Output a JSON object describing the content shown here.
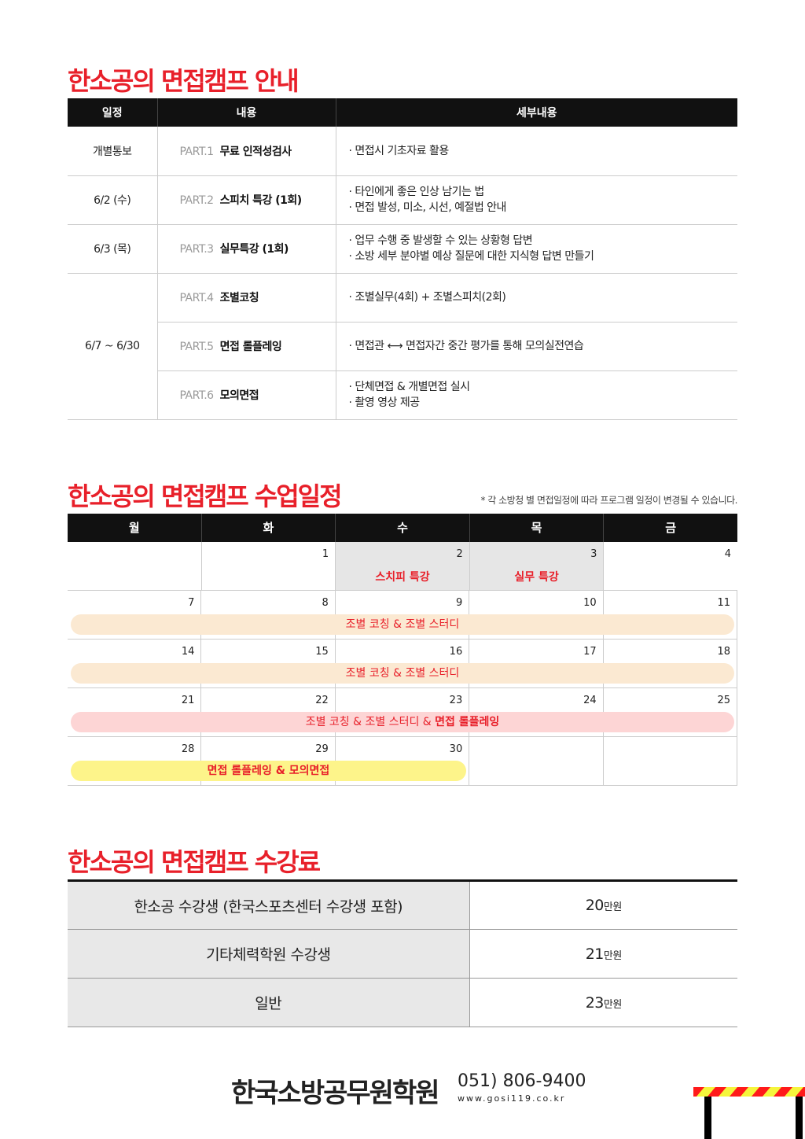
{
  "section1": {
    "title": "한소공의 면접캠프 안내",
    "headers": [
      "일정",
      "내용",
      "세부내용"
    ],
    "rows": [
      {
        "date": "개별통보",
        "part": "PART.1",
        "name": "무료 인적성검사",
        "details": [
          "· 면접시 기초자료 활용"
        ]
      },
      {
        "date": "6/2 (수)",
        "part": "PART.2",
        "name": "스피치 특강 (1회)",
        "details": [
          "· 타인에게 좋은 인상 남기는 법",
          "· 면접 발성, 미소, 시선, 예절법 안내"
        ]
      },
      {
        "date": "6/3 (목)",
        "part": "PART.3",
        "name": "실무특강 (1회)",
        "details": [
          "· 업무 수행 중 발생할 수 있는 상황형 답변",
          "· 소방 세부 분야별 예상 질문에 대한 지식형 답변 만들기"
        ]
      },
      {
        "date": "6/7 ~ 6/30",
        "part": "PART.4",
        "name": "조별코칭",
        "details": [
          "· 조별실무(4회) + 조별스피치(2회)"
        ]
      },
      {
        "date": "",
        "part": "PART.5",
        "name": "면접 롤플레잉",
        "details": [
          "· 면접관 ⟷ 면접자간 중간 평가를 통해 모의실전연습"
        ]
      },
      {
        "date": "",
        "part": "PART.6",
        "name": "모의면접",
        "details": [
          "· 단체면접 & 개별면접 실시",
          "· 촬영 영상 제공"
        ]
      }
    ]
  },
  "section2": {
    "title": "한소공의 면접캠프 수업일정",
    "note": "* 각 소방청 별 면접일정에 따라 프로그램 일정이 변경될 수 있습니다.",
    "weekdays": [
      "월",
      "화",
      "수",
      "목",
      "금"
    ],
    "weeks": [
      [
        "",
        "1",
        "2",
        "3",
        "4"
      ],
      [
        "7",
        "8",
        "9",
        "10",
        "11"
      ],
      [
        "14",
        "15",
        "16",
        "17",
        "18"
      ],
      [
        "21",
        "22",
        "23",
        "24",
        "25"
      ],
      [
        "28",
        "29",
        "30",
        "",
        ""
      ]
    ],
    "events": {
      "d2": "스치피 특강",
      "d3": "실무 특강",
      "w2": "조별 코칭 & 조별 스터디",
      "w3": "조별 코칭 & 조별 스터디",
      "w4a": "조별 코칭 & 조별 스터디 & ",
      "w4b": "면접 롤플레잉",
      "w5": "면접 롤플레잉 & 모의면접"
    },
    "colors": {
      "beige": "#fbe9d2",
      "pink": "#fdd5d5",
      "yellow": "#fdf48a",
      "red": "#e8202a"
    }
  },
  "section3": {
    "title": "한소공의 면접캠프 수강료",
    "rows": [
      {
        "label": "한소공 수강생 (한국스포츠센터 수강생 포함)",
        "amount": "20",
        "unit": "만원"
      },
      {
        "label": "기타체력학원 수강생",
        "amount": "21",
        "unit": "만원"
      },
      {
        "label": "일반",
        "amount": "23",
        "unit": "만원"
      }
    ]
  },
  "footer": {
    "name": "한국소방공무원학원",
    "phone": "051) 806-9400",
    "website": "www.gosi119.co.kr"
  }
}
